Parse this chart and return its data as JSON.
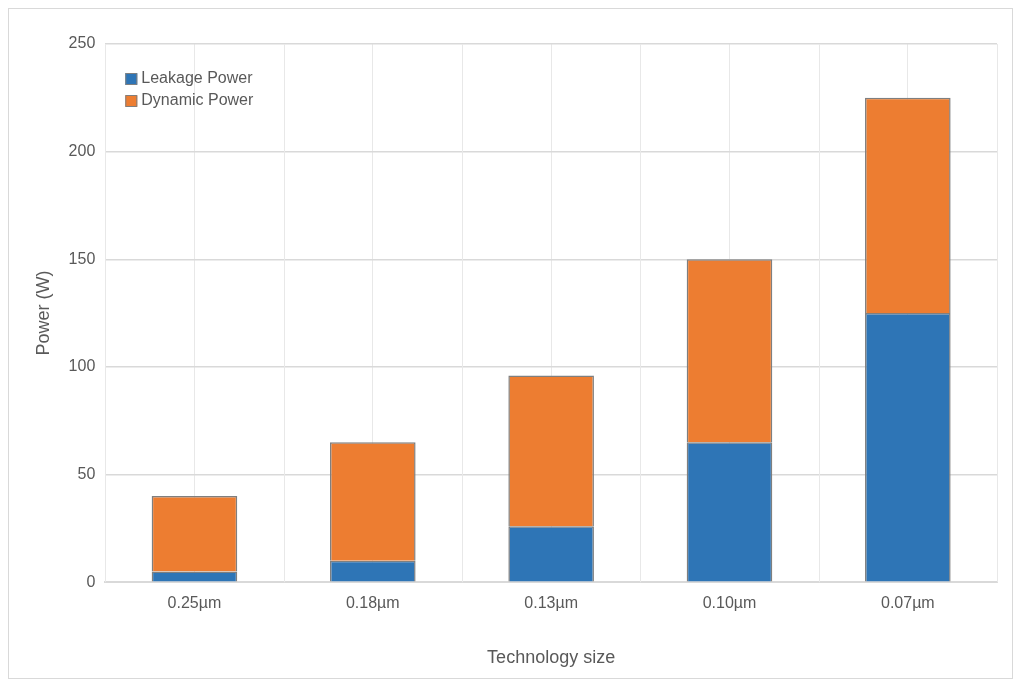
{
  "chart_data": {
    "type": "bar",
    "xlabel": "Technology size",
    "ylabel": "Power (W)",
    "categories": [
      "0.25µm",
      "0.18µm",
      "0.13µm",
      "0.10µm",
      "0.07µm"
    ],
    "series": [
      {
        "name": "Leakage Power",
        "color": "#2e75b6",
        "values": [
          5,
          10,
          26,
          65,
          125
        ]
      },
      {
        "name": "Dynamic Power",
        "color": "#ed7d31",
        "values": [
          35,
          55,
          70,
          85,
          100
        ]
      }
    ],
    "stacked": true,
    "ylim": [
      0,
      250
    ],
    "yticks": [
      0,
      50,
      100,
      150,
      200,
      250
    ],
    "grid": true,
    "legend": "top left"
  }
}
